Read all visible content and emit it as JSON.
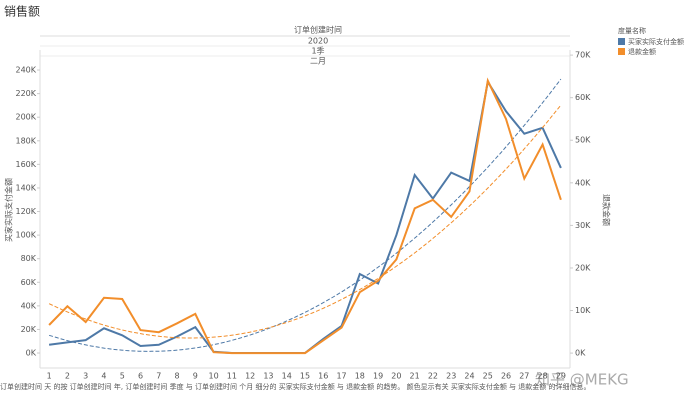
{
  "title": "销售额",
  "watermark": "知乎 @MEKG",
  "footer": "订单创建时间 天 的按 订单创建时间 年, 订单创建时间 季度 与 订单创建时间 个月 细分的 买家实际支付金额 与 退款金额 的趋势。 颜色显示有关 买家实际支付金额 与 退款金额 的详细信息。",
  "chart_data": {
    "type": "line",
    "header": [
      "订单创建时间",
      "2020",
      "1季",
      "二月"
    ],
    "legend_title": "度量名称",
    "y_label": "买家实际支付金额",
    "y2_label": "退款金额",
    "trendline": "polynomial-2",
    "categories": [
      "1",
      "2",
      "3",
      "4",
      "5",
      "6",
      "7",
      "8",
      "9",
      "10",
      "11",
      "12",
      "13",
      "14",
      "15",
      "16",
      "17",
      "18",
      "19",
      "20",
      "21",
      "22",
      "23",
      "24",
      "25",
      "26",
      "27",
      "28",
      "29"
    ],
    "series": [
      {
        "name": "买家实际支付金额",
        "color": "#4e79a7",
        "values": [
          7000,
          9000,
          11000,
          21000,
          15000,
          6000,
          7000,
          14000,
          22000,
          1000,
          0,
          0,
          0,
          0,
          0,
          12000,
          23000,
          67000,
          59000,
          100000,
          151000,
          131000,
          153000,
          146000,
          230000,
          205000,
          186000,
          191000,
          157000
        ]
      },
      {
        "name": "退款金额",
        "color": "#f28e2b",
        "axis": "y2",
        "values": [
          6600,
          11000,
          7300,
          13000,
          12700,
          5400,
          4900,
          7000,
          9200,
          200,
          0,
          0,
          0,
          0,
          0,
          3000,
          6000,
          14300,
          17000,
          22000,
          34000,
          36000,
          32000,
          38000,
          64000,
          55000,
          41000,
          49000,
          36000
        ]
      }
    ],
    "ylim": [
      -12700,
      257000
    ],
    "yticks": [
      {
        "value": 0,
        "label": "0K"
      },
      {
        "value": 20000,
        "label": "20K"
      },
      {
        "value": 40000,
        "label": "40K"
      },
      {
        "value": 60000,
        "label": "60K"
      },
      {
        "value": 80000,
        "label": "80K"
      },
      {
        "value": 100000,
        "label": "100K"
      },
      {
        "value": 120000,
        "label": "120K"
      },
      {
        "value": 140000,
        "label": "140K"
      },
      {
        "value": 160000,
        "label": "160K"
      },
      {
        "value": 180000,
        "label": "180K"
      },
      {
        "value": 200000,
        "label": "200K"
      },
      {
        "value": 220000,
        "label": "220K"
      },
      {
        "value": 240000,
        "label": "240K"
      }
    ],
    "y2lim": [
      -3500,
      71200
    ],
    "y2ticks": [
      {
        "value": 0,
        "label": "0K"
      },
      {
        "value": 10000,
        "label": "10K"
      },
      {
        "value": 20000,
        "label": "20K"
      },
      {
        "value": 30000,
        "label": "30K"
      },
      {
        "value": 40000,
        "label": "40K"
      },
      {
        "value": 50000,
        "label": "50K"
      },
      {
        "value": 60000,
        "label": "60K"
      },
      {
        "value": 70000,
        "label": "70K"
      }
    ]
  }
}
